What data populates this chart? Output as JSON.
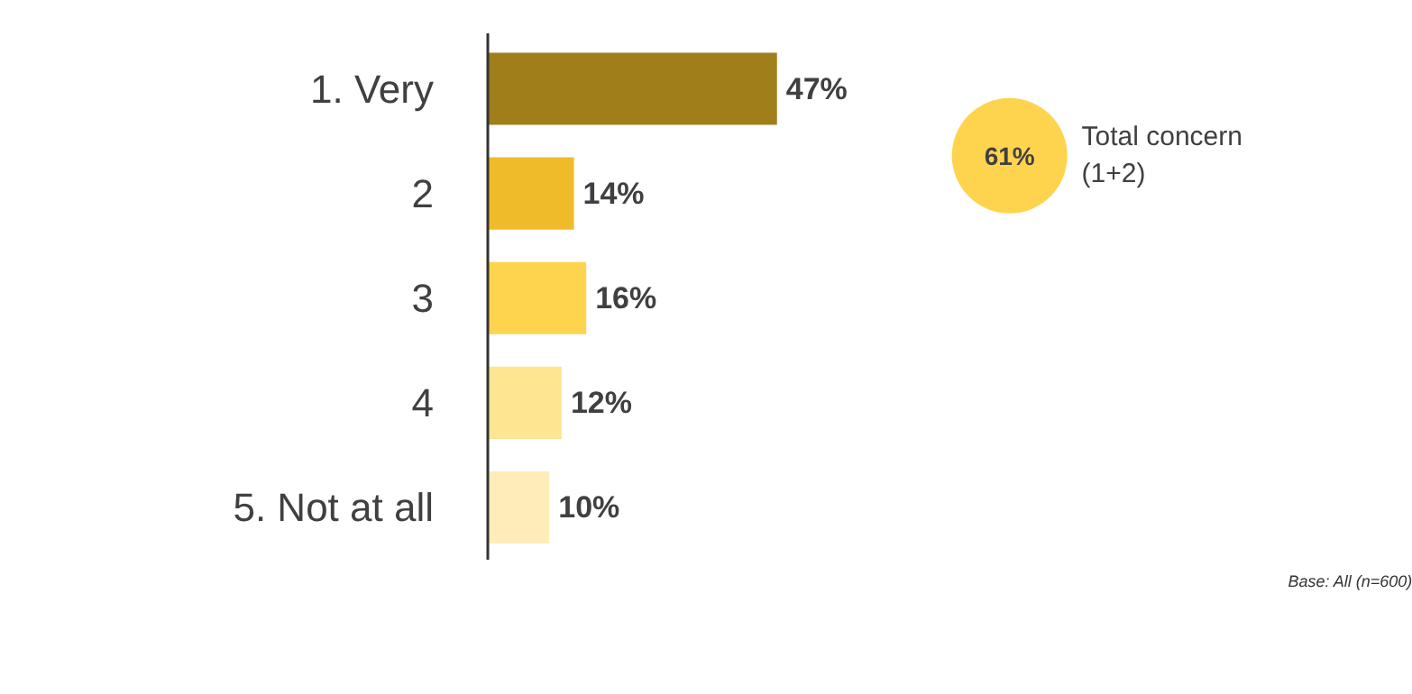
{
  "chart_data": {
    "type": "bar",
    "orientation": "horizontal",
    "categories": [
      "1. Very",
      "2",
      "3",
      "4",
      "5. Not at all"
    ],
    "values": [
      47,
      14,
      16,
      12,
      10
    ],
    "value_labels": [
      "47%",
      "14%",
      "16%",
      "12%",
      "10%"
    ],
    "colors": [
      "#a07e1a",
      "#f0bb2a",
      "#fed44f",
      "#fee592",
      "#feedb9"
    ],
    "annotations": [
      "61%",
      "Total concern\n(1+2)",
      "Base: All (n=600)"
    ]
  }
}
